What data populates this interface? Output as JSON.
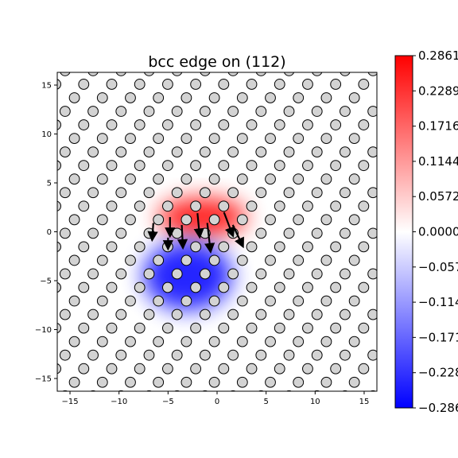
{
  "chart_data": {
    "type": "heatmap",
    "title": "bcc edge on (112)",
    "xlabel": "",
    "ylabel": "",
    "xlim": [
      -16.3,
      16.3
    ],
    "ylim": [
      -16.3,
      16.3
    ],
    "x_ticks": [
      -15,
      -10,
      -5,
      0,
      5,
      10,
      15
    ],
    "y_ticks": [
      -15,
      -10,
      -5,
      0,
      5,
      10,
      15
    ],
    "x_tick_labels": [
      "−15",
      "−10",
      "−5",
      "0",
      "5",
      "10",
      "15"
    ],
    "y_tick_labels": [
      "−15",
      "−10",
      "−5",
      "0",
      "5",
      "10",
      "15"
    ],
    "colormap": "bwr",
    "colorbar_range": [
      -0.2861,
      0.2861
    ],
    "colorbar_ticks": [
      0.2861,
      0.2289,
      0.1716,
      0.1144,
      0.0572,
      0.0,
      -0.0572,
      -0.1144,
      -0.1716,
      -0.2289,
      -0.2861
    ],
    "colorbar_tick_labels": [
      "0.2861",
      "0.2289",
      "0.1716",
      "0.1144",
      "0.0572",
      "0.0000",
      "−0.0572",
      "−0.1144",
      "−0.1716",
      "−0.2289",
      "−0.2861"
    ],
    "colors": {
      "positive": "#ff0000",
      "zero": "#ffffff",
      "negative": "#0000ff",
      "atom_fill": "#d3d3d3",
      "atom_edge": "#000000"
    },
    "lattice": {
      "row_spacing": 1.385,
      "row_shift": 0.95,
      "atom_spacing": 2.855,
      "rows_per_period": 3
    },
    "fields": [
      {
        "sign": "positive",
        "center": [
          -1.5,
          1.5
        ],
        "spread": [
          4.5,
          2.0
        ],
        "peak": 0.2861
      },
      {
        "sign": "negative",
        "center": [
          -3.0,
          -4.5
        ],
        "spread": [
          4.5,
          3.5
        ],
        "peak": -0.2861
      }
    ],
    "arrows": [
      {
        "x": -6.5,
        "y": 0.9,
        "dx": -0.1,
        "dy": -1.4
      },
      {
        "x": -4.8,
        "y": 1.5,
        "dx": 0.0,
        "dy": -1.6
      },
      {
        "x": -3.6,
        "y": 0.7,
        "dx": 0.1,
        "dy": -2.0
      },
      {
        "x": -2.0,
        "y": 1.9,
        "dx": 0.2,
        "dy": -2.1
      },
      {
        "x": -1.0,
        "y": 0.9,
        "dx": 0.3,
        "dy": -2.6
      },
      {
        "x": 0.7,
        "y": 2.0,
        "dx": 0.8,
        "dy": -2.1
      },
      {
        "x": 1.6,
        "y": 0.7,
        "dx": 0.9,
        "dy": -1.9
      },
      {
        "x": -5.0,
        "y": -0.6,
        "dx": 0.0,
        "dy": -0.8
      }
    ]
  }
}
